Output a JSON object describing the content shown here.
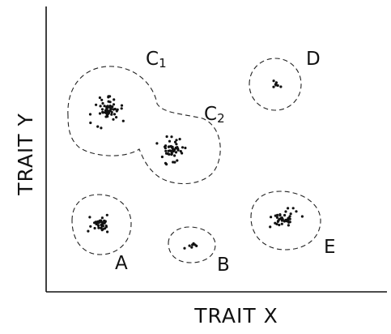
{
  "chart_data": {
    "type": "scatter",
    "title": "",
    "xlabel": "TRAIT X",
    "ylabel": "TRAIT Y",
    "grid": false,
    "clusters": [
      {
        "name": "C",
        "subscript": "1",
        "approx_points": 60
      },
      {
        "name": "C",
        "subscript": "2",
        "approx_points": 50
      },
      {
        "name": "D",
        "subscript": "",
        "approx_points": 8
      },
      {
        "name": "A",
        "subscript": "",
        "approx_points": 35
      },
      {
        "name": "B",
        "subscript": "",
        "approx_points": 8
      },
      {
        "name": "E",
        "subscript": "",
        "approx_points": 45
      }
    ]
  }
}
